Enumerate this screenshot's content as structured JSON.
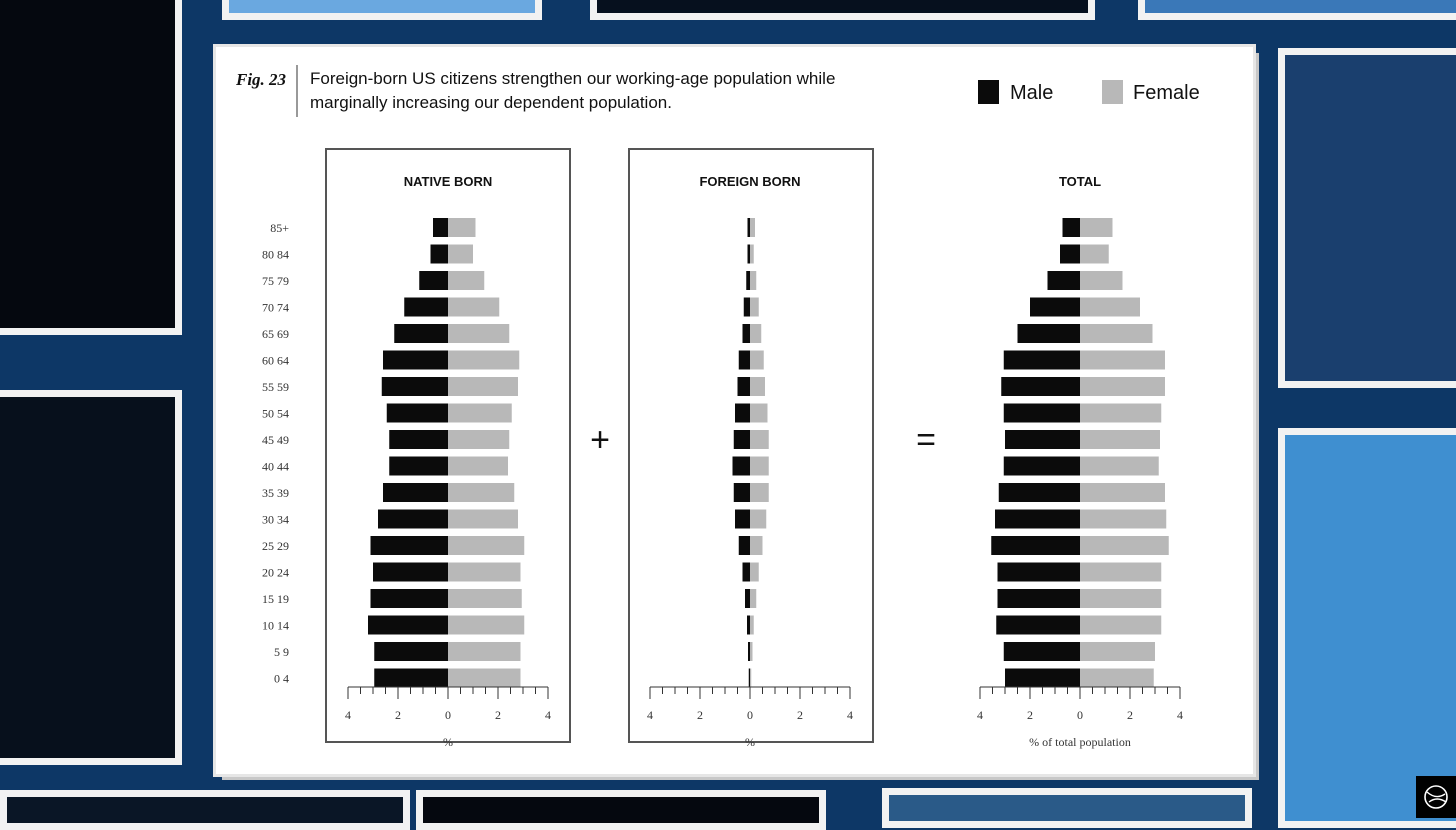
{
  "figure": {
    "label": "Fig. 23",
    "caption_line1": "Foreign-born US citizens strengthen our working-age population while",
    "caption_line2": "marginally increasing our dependent population."
  },
  "legend": {
    "male": "Male",
    "female": "Female"
  },
  "colors": {
    "male": "#0b0b0b",
    "female": "#b8b8b8",
    "background": "#0d3766"
  },
  "operators": {
    "plus": "+",
    "equals": "="
  },
  "chart_data": {
    "type": "bar",
    "orientation": "horizontal-population-pyramid",
    "age_groups": [
      "85+",
      "80 84",
      "75 79",
      "70 74",
      "65 69",
      "60 64",
      "55 59",
      "50 54",
      "45 49",
      "40 44",
      "35 39",
      "30 34",
      "25 29",
      "20 24",
      "15 19",
      "10 14",
      "5 9",
      "0 4"
    ],
    "xlim": [
      -4,
      4
    ],
    "x_ticks": [
      "4",
      "2",
      "0",
      "2",
      "4"
    ],
    "panels": [
      {
        "title": "NATIVE BORN",
        "xlabel": "%",
        "series": [
          {
            "name": "Male",
            "values": [
              0.6,
              0.7,
              1.15,
              1.75,
              2.15,
              2.6,
              2.65,
              2.45,
              2.35,
              2.35,
              2.6,
              2.8,
              3.1,
              3.0,
              3.1,
              3.2,
              2.95,
              2.95
            ]
          },
          {
            "name": "Female",
            "values": [
              1.1,
              1.0,
              1.45,
              2.05,
              2.45,
              2.85,
              2.8,
              2.55,
              2.45,
              2.4,
              2.65,
              2.8,
              3.05,
              2.9,
              2.95,
              3.05,
              2.9,
              2.9
            ]
          }
        ]
      },
      {
        "title": "FOREIGN BORN",
        "xlabel": "%",
        "series": [
          {
            "name": "Male",
            "values": [
              0.1,
              0.1,
              0.15,
              0.25,
              0.3,
              0.45,
              0.5,
              0.6,
              0.65,
              0.7,
              0.65,
              0.6,
              0.45,
              0.3,
              0.2,
              0.12,
              0.08,
              0.05
            ]
          },
          {
            "name": "Female",
            "values": [
              0.2,
              0.15,
              0.25,
              0.35,
              0.45,
              0.55,
              0.6,
              0.7,
              0.75,
              0.75,
              0.75,
              0.65,
              0.5,
              0.35,
              0.25,
              0.15,
              0.1,
              0.05
            ]
          }
        ]
      },
      {
        "title": "TOTAL",
        "xlabel": "% of total population",
        "series": [
          {
            "name": "Male",
            "values": [
              0.7,
              0.8,
              1.3,
              2.0,
              2.5,
              3.05,
              3.15,
              3.05,
              3.0,
              3.05,
              3.25,
              3.4,
              3.55,
              3.3,
              3.3,
              3.35,
              3.05,
              3.0
            ]
          },
          {
            "name": "Female",
            "values": [
              1.3,
              1.15,
              1.7,
              2.4,
              2.9,
              3.4,
              3.4,
              3.25,
              3.2,
              3.15,
              3.4,
              3.45,
              3.55,
              3.25,
              3.25,
              3.25,
              3.0,
              2.95
            ]
          }
        ]
      }
    ]
  }
}
